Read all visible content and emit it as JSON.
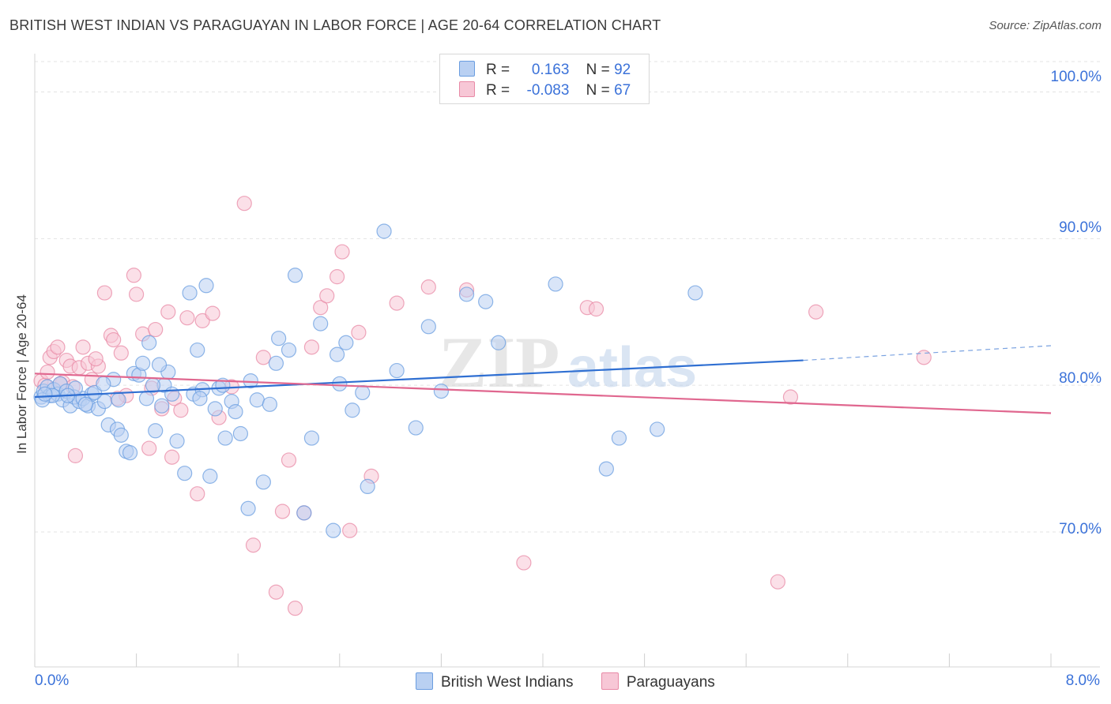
{
  "title": "BRITISH WEST INDIAN VS PARAGUAYAN IN LABOR FORCE | AGE 20-64 CORRELATION CHART",
  "source": "Source: ZipAtlas.com",
  "watermark": {
    "zip": "ZIP",
    "atlas": "atlas"
  },
  "legend": {
    "r_label": "R =",
    "n_label": "N =",
    "rows": [
      {
        "r": "0.163",
        "n": "92"
      },
      {
        "r": "-0.083",
        "n": "67"
      }
    ]
  },
  "chart_data": {
    "type": "scatter",
    "title": "BRITISH WEST INDIAN VS PARAGUAYAN IN LABOR FORCE | AGE 20-64 CORRELATION CHART",
    "xlabel": "",
    "ylabel": "In Labor Force | Age 20-64",
    "xlim": [
      0.0,
      8.0
    ],
    "ylim": [
      60.8,
      102.5
    ],
    "x_tick_labels": [
      "0.0%",
      "8.0%"
    ],
    "y_ticks": [
      70,
      80,
      90,
      100
    ],
    "y_tick_labels": [
      "70.0%",
      "80.0%",
      "90.0%",
      "100.0%"
    ],
    "grid": "horizontal dashed",
    "legend_placement": "top-center and bottom",
    "series": [
      {
        "name": "British West Indians",
        "color": "#6a9de0",
        "fill": "#b9d0f2",
        "r": 0.163,
        "n": 92,
        "trend": {
          "x0": 0.0,
          "y0": 79.2,
          "x1": 6.05,
          "y1": 81.7,
          "dash_to_x": 8.0,
          "dash_to_y": 82.7
        },
        "points": [
          [
            0.05,
            79.2
          ],
          [
            0.07,
            79.6
          ],
          [
            0.1,
            79.9
          ],
          [
            0.12,
            79.3
          ],
          [
            0.15,
            79.7
          ],
          [
            0.18,
            79.4
          ],
          [
            0.2,
            80.1
          ],
          [
            0.22,
            79.0
          ],
          [
            0.25,
            79.6
          ],
          [
            0.28,
            78.6
          ],
          [
            0.31,
            79.2
          ],
          [
            0.35,
            78.9
          ],
          [
            0.38,
            79.1
          ],
          [
            0.42,
            78.6
          ],
          [
            0.45,
            79.4
          ],
          [
            0.5,
            78.4
          ],
          [
            0.55,
            78.9
          ],
          [
            0.58,
            77.3
          ],
          [
            0.62,
            80.4
          ],
          [
            0.65,
            77.0
          ],
          [
            0.68,
            76.6
          ],
          [
            0.72,
            75.5
          ],
          [
            0.75,
            75.4
          ],
          [
            0.78,
            80.8
          ],
          [
            0.82,
            80.7
          ],
          [
            0.85,
            81.5
          ],
          [
            0.88,
            79.1
          ],
          [
            0.9,
            82.9
          ],
          [
            0.95,
            76.9
          ],
          [
            1.0,
            78.6
          ],
          [
            1.02,
            80.0
          ],
          [
            1.05,
            80.9
          ],
          [
            1.08,
            79.4
          ],
          [
            1.12,
            76.2
          ],
          [
            1.18,
            74.0
          ],
          [
            1.22,
            86.3
          ],
          [
            1.25,
            79.4
          ],
          [
            1.28,
            82.4
          ],
          [
            1.32,
            79.7
          ],
          [
            1.35,
            86.8
          ],
          [
            1.38,
            73.8
          ],
          [
            1.42,
            78.4
          ],
          [
            1.45,
            79.8
          ],
          [
            1.5,
            76.4
          ],
          [
            1.55,
            78.9
          ],
          [
            1.58,
            78.2
          ],
          [
            1.62,
            76.7
          ],
          [
            1.68,
            71.6
          ],
          [
            1.75,
            79.0
          ],
          [
            1.8,
            73.4
          ],
          [
            1.85,
            78.7
          ],
          [
            1.92,
            83.2
          ],
          [
            2.0,
            82.4
          ],
          [
            2.05,
            87.5
          ],
          [
            2.12,
            71.3
          ],
          [
            2.18,
            76.4
          ],
          [
            2.25,
            84.2
          ],
          [
            2.35,
            70.1
          ],
          [
            2.38,
            82.1
          ],
          [
            2.45,
            82.9
          ],
          [
            2.5,
            78.3
          ],
          [
            2.58,
            79.5
          ],
          [
            2.62,
            73.1
          ],
          [
            2.75,
            90.5
          ],
          [
            2.85,
            81.0
          ],
          [
            3.0,
            77.1
          ],
          [
            3.1,
            84.0
          ],
          [
            3.2,
            79.6
          ],
          [
            3.4,
            86.2
          ],
          [
            3.55,
            85.7
          ],
          [
            3.65,
            82.9
          ],
          [
            4.1,
            86.9
          ],
          [
            4.5,
            74.3
          ],
          [
            4.6,
            76.4
          ],
          [
            4.9,
            77.0
          ],
          [
            5.2,
            86.3
          ],
          [
            0.14,
            79.3
          ],
          [
            0.06,
            79.0
          ],
          [
            0.32,
            79.8
          ],
          [
            0.08,
            79.4
          ],
          [
            0.4,
            78.7
          ],
          [
            0.47,
            79.5
          ],
          [
            0.26,
            79.3
          ],
          [
            1.48,
            80.0
          ],
          [
            0.66,
            79.0
          ],
          [
            0.54,
            80.1
          ],
          [
            1.9,
            81.5
          ],
          [
            2.4,
            80.1
          ],
          [
            0.93,
            80.0
          ],
          [
            1.7,
            80.3
          ],
          [
            1.3,
            79.1
          ],
          [
            0.98,
            81.4
          ]
        ]
      },
      {
        "name": "Paraguayans",
        "color": "#e88aa6",
        "fill": "#f7c7d6",
        "r": -0.083,
        "n": 67,
        "trend": {
          "x0": 0.0,
          "y0": 80.8,
          "x1": 8.0,
          "y1": 78.1
        },
        "points": [
          [
            0.05,
            80.3
          ],
          [
            0.08,
            80.0
          ],
          [
            0.12,
            81.9
          ],
          [
            0.15,
            82.3
          ],
          [
            0.18,
            82.6
          ],
          [
            0.22,
            80.2
          ],
          [
            0.25,
            81.7
          ],
          [
            0.28,
            81.3
          ],
          [
            0.3,
            79.9
          ],
          [
            0.32,
            75.2
          ],
          [
            0.35,
            81.2
          ],
          [
            0.38,
            82.6
          ],
          [
            0.42,
            81.5
          ],
          [
            0.45,
            80.4
          ],
          [
            0.5,
            81.3
          ],
          [
            0.55,
            86.3
          ],
          [
            0.6,
            83.4
          ],
          [
            0.62,
            83.1
          ],
          [
            0.68,
            82.2
          ],
          [
            0.72,
            79.3
          ],
          [
            0.78,
            87.5
          ],
          [
            0.8,
            86.2
          ],
          [
            0.85,
            83.5
          ],
          [
            0.9,
            75.7
          ],
          [
            0.92,
            79.8
          ],
          [
            0.95,
            83.8
          ],
          [
            1.0,
            78.4
          ],
          [
            1.05,
            85.0
          ],
          [
            1.1,
            79.1
          ],
          [
            1.15,
            78.3
          ],
          [
            1.2,
            84.6
          ],
          [
            1.28,
            72.6
          ],
          [
            1.32,
            84.4
          ],
          [
            1.4,
            84.9
          ],
          [
            1.45,
            77.8
          ],
          [
            1.55,
            79.9
          ],
          [
            1.65,
            92.4
          ],
          [
            1.72,
            69.1
          ],
          [
            1.8,
            81.9
          ],
          [
            1.9,
            65.9
          ],
          [
            1.95,
            71.4
          ],
          [
            2.0,
            74.9
          ],
          [
            2.05,
            64.8
          ],
          [
            2.12,
            71.3
          ],
          [
            2.18,
            82.6
          ],
          [
            2.25,
            85.3
          ],
          [
            2.3,
            86.1
          ],
          [
            2.38,
            87.4
          ],
          [
            2.42,
            89.1
          ],
          [
            2.48,
            70.1
          ],
          [
            2.55,
            83.6
          ],
          [
            2.65,
            73.8
          ],
          [
            2.85,
            85.6
          ],
          [
            3.1,
            86.7
          ],
          [
            3.4,
            86.5
          ],
          [
            3.85,
            67.9
          ],
          [
            4.35,
            85.3
          ],
          [
            4.42,
            85.2
          ],
          [
            5.85,
            66.6
          ],
          [
            5.95,
            79.2
          ],
          [
            6.15,
            85.0
          ],
          [
            7.0,
            81.9
          ],
          [
            0.65,
            79.1
          ],
          [
            0.1,
            80.9
          ],
          [
            0.2,
            80.1
          ],
          [
            1.08,
            75.1
          ],
          [
            0.48,
            81.8
          ]
        ]
      }
    ]
  }
}
